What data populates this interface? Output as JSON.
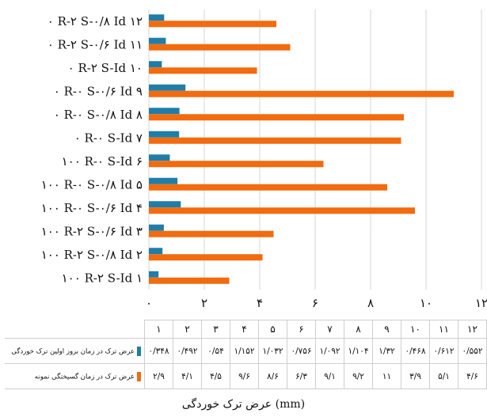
{
  "chart_data": {
    "type": "bar",
    "orientation": "horizontal",
    "categories": [
      "۰ R-۲ S-۰/۸ Id  ۱۲",
      "۰ R-۲ S-۰/۶ Id  ۱۱",
      "۰ R-۲ S-Id  ۱۰",
      "۰ R-۰ S-۰/۶ Id  ۹",
      "۰ R-۰ S-۰/۸ Id  ۸",
      "۰ R-۰ S-Id  ۷",
      "۱۰۰ R-۰ S-Id  ۶",
      "۱۰۰ R-۰ S-۰/۸ Id  ۵",
      "۱۰۰ R-۰ S-۰/۶ Id  ۴",
      "۱۰۰ R-۲ S-۰/۶ Id  ۳",
      "۱۰۰ R-۲ S-۰/۸ Id  ۲",
      "۱۰۰ R-۲ S-Id  ۱"
    ],
    "series": [
      {
        "name": "عرض ترک در زمان بروز اولین ترک خوردگی",
        "color": "#1f7ea8",
        "values": [
          0.552,
          0.612,
          0.468,
          1.32,
          1.104,
          1.092,
          0.756,
          1.032,
          1.152,
          0.54,
          0.492,
          0.348
        ],
        "table_values": [
          "۰/۵۵۲",
          "۰/۶۱۲",
          "۰/۴۶۸",
          "۱/۳۲",
          "۱/۱۰۴",
          "۱/۰۹۲",
          "۰/۷۵۶",
          "۱/۰۳۲",
          "۱/۱۵۲",
          "۰/۵۴",
          "۰/۴۹۲",
          "۰/۳۴۸"
        ]
      },
      {
        "name": "عرض ترک در زمان گسیختگی نمونه",
        "color": "#f26b0f",
        "values": [
          4.6,
          5.1,
          3.9,
          11,
          9.2,
          9.1,
          6.3,
          8.6,
          9.6,
          4.5,
          4.1,
          2.9
        ],
        "table_values": [
          "۴/۶",
          "۵/۱",
          "۳/۹",
          "۱۱",
          "۹/۲",
          "۹/۱",
          "۶/۳",
          "۸/۶",
          "۹/۶",
          "۴/۵",
          "۴/۱",
          "۲/۹"
        ]
      }
    ],
    "table_header": [
      "۱۲",
      "۱۱",
      "۱۰",
      "۹",
      "۸",
      "۷",
      "۶",
      "۵",
      "۴",
      "۳",
      "۲",
      "۱"
    ],
    "xlim": [
      0,
      12
    ],
    "x_ticks": [
      0,
      2,
      4,
      6,
      8,
      10,
      12
    ],
    "x_tick_labels": [
      "۰",
      "۲",
      "۴",
      "۶",
      "۸",
      "۱۰",
      "۱۲"
    ],
    "xlabel": "عرض ترک خوردگی (mm)",
    "grid": "vertical",
    "legend": "data-table"
  }
}
